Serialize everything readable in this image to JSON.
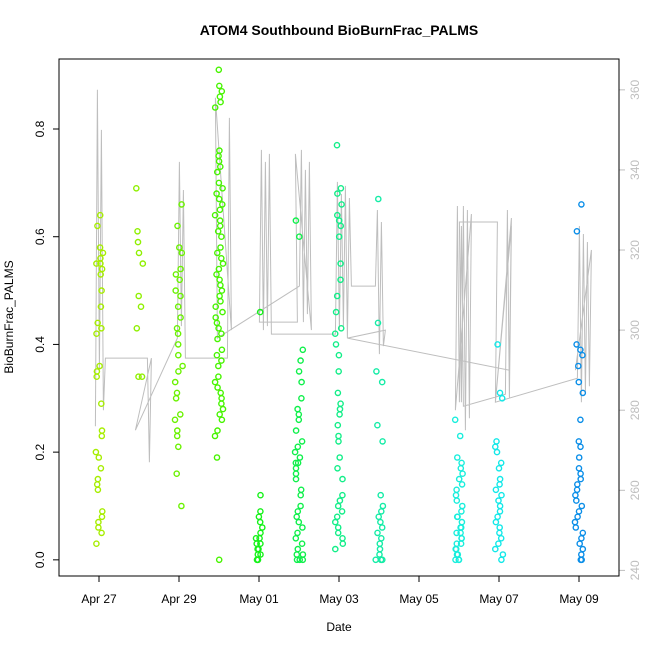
{
  "chart_data": {
    "type": "scatter",
    "title": "ATOM4 Southbound BioBurnFrac_PALMS",
    "xlabel": "Date",
    "ylabel": "BioBurnFrac_PALMS",
    "x_axis": {
      "type": "date",
      "range": [
        "2018-04-26",
        "2018-05-10"
      ],
      "ticks": [
        "2018-04-27",
        "2018-04-29",
        "2018-05-01",
        "2018-05-03",
        "2018-05-05",
        "2018-05-07",
        "2018-05-09"
      ],
      "tick_labels": [
        "Apr 27",
        "Apr 29",
        "May 01",
        "May 03",
        "May 05",
        "May 07",
        "May 09"
      ]
    },
    "y_axis": {
      "range": [
        -0.03,
        0.93
      ],
      "ticks": [
        0.0,
        0.2,
        0.4,
        0.6,
        0.8
      ],
      "tick_labels": [
        "0.0",
        "0.2",
        "0.4",
        "0.6",
        "0.8"
      ]
    },
    "y2_axis": {
      "side": "right",
      "color": "#bebebe",
      "range": [
        238.6,
        367.7
      ],
      "ticks": [
        240,
        260,
        280,
        300,
        320,
        340,
        360
      ],
      "tick_labels": [
        "240",
        "260",
        "280",
        "300",
        "320",
        "340",
        "360"
      ]
    },
    "grid": false,
    "legend": "none",
    "series": [
      {
        "kind": "points",
        "flights": [
          {
            "date": "2018-04-27",
            "color": "#a6ee00",
            "values": [
              0.64,
              0.62,
              0.58,
              0.57,
              0.56,
              0.55,
              0.55,
              0.54,
              0.53,
              0.5,
              0.47,
              0.44,
              0.43,
              0.42,
              0.36,
              0.35,
              0.34,
              0.29,
              0.24,
              0.23,
              0.2,
              0.19,
              0.17,
              0.15,
              0.14,
              0.13,
              0.09,
              0.08,
              0.07,
              0.06,
              0.05,
              0.03
            ]
          },
          {
            "date": "2018-04-28",
            "color": "#8ff000",
            "values": [
              0.69,
              0.61,
              0.59,
              0.57,
              0.55,
              0.49,
              0.47,
              0.43,
              0.34,
              0.34
            ]
          },
          {
            "date": "2018-04-29",
            "color": "#6af200",
            "values": [
              0.66,
              0.62,
              0.58,
              0.57,
              0.54,
              0.53,
              0.52,
              0.5,
              0.49,
              0.47,
              0.45,
              0.43,
              0.42,
              0.4,
              0.38,
              0.36,
              0.35,
              0.33,
              0.31,
              0.3,
              0.27,
              0.26,
              0.24,
              0.23,
              0.21,
              0.16,
              0.1
            ]
          },
          {
            "date": "2018-04-30",
            "color": "#47f400",
            "values": [
              0.91,
              0.88,
              0.87,
              0.86,
              0.85,
              0.84,
              0.76,
              0.75,
              0.74,
              0.73,
              0.72,
              0.7,
              0.69,
              0.68,
              0.67,
              0.66,
              0.65,
              0.64,
              0.63,
              0.62,
              0.61,
              0.6,
              0.58,
              0.57,
              0.56,
              0.55,
              0.54,
              0.53,
              0.52,
              0.51,
              0.5,
              0.49,
              0.48,
              0.47,
              0.46,
              0.45,
              0.44,
              0.43,
              0.42,
              0.41,
              0.39,
              0.38,
              0.37,
              0.36,
              0.34,
              0.33,
              0.32,
              0.31,
              0.3,
              0.29,
              0.28,
              0.27,
              0.26,
              0.24,
              0.23,
              0.19,
              0.0
            ]
          },
          {
            "date": "2018-05-01",
            "color": "#14f218",
            "values": [
              0.46,
              0.12,
              0.09,
              0.08,
              0.07,
              0.06,
              0.05,
              0.04,
              0.04,
              0.03,
              0.03,
              0.02,
              0.02,
              0.01,
              0.01,
              0.0,
              0.0,
              0.0
            ]
          },
          {
            "date": "2018-05-02",
            "color": "#0ef04a",
            "values": [
              0.63,
              0.6,
              0.39,
              0.37,
              0.35,
              0.33,
              0.3,
              0.28,
              0.27,
              0.26,
              0.24,
              0.22,
              0.21,
              0.2,
              0.19,
              0.18,
              0.18,
              0.17,
              0.16,
              0.15,
              0.13,
              0.12,
              0.1,
              0.09,
              0.08,
              0.07,
              0.06,
              0.05,
              0.04,
              0.03,
              0.02,
              0.01,
              0.01,
              0.0,
              0.0,
              0.0
            ]
          },
          {
            "date": "2018-05-03",
            "color": "#12ee88",
            "values": [
              0.77,
              0.69,
              0.68,
              0.66,
              0.64,
              0.63,
              0.62,
              0.6,
              0.55,
              0.52,
              0.49,
              0.46,
              0.43,
              0.42,
              0.4,
              0.38,
              0.35,
              0.31,
              0.29,
              0.28,
              0.27,
              0.25,
              0.23,
              0.22,
              0.19,
              0.17,
              0.15,
              0.12,
              0.11,
              0.1,
              0.09,
              0.08,
              0.07,
              0.06,
              0.05,
              0.04,
              0.03,
              0.02
            ]
          },
          {
            "date": "2018-05-04",
            "color": "#14eca6",
            "values": [
              0.67,
              0.44,
              0.35,
              0.33,
              0.25,
              0.22,
              0.12,
              0.1,
              0.09,
              0.08,
              0.07,
              0.06,
              0.05,
              0.04,
              0.03,
              0.02,
              0.01,
              0.0,
              0.0,
              0.0
            ]
          },
          {
            "date": "2018-05-06",
            "color": "#18eedc",
            "values": [
              0.26,
              0.23,
              0.19,
              0.18,
              0.17,
              0.16,
              0.15,
              0.14,
              0.13,
              0.12,
              0.11,
              0.1,
              0.09,
              0.08,
              0.08,
              0.07,
              0.06,
              0.06,
              0.05,
              0.05,
              0.04,
              0.04,
              0.03,
              0.03,
              0.02,
              0.02,
              0.01,
              0.01,
              0.0,
              0.0,
              0.0
            ]
          },
          {
            "date": "2018-05-07",
            "color": "#12e8e8",
            "values": [
              0.4,
              0.31,
              0.3,
              0.22,
              0.21,
              0.2,
              0.18,
              0.17,
              0.15,
              0.14,
              0.13,
              0.12,
              0.11,
              0.1,
              0.09,
              0.08,
              0.07,
              0.06,
              0.05,
              0.04,
              0.03,
              0.02,
              0.01,
              0.0
            ]
          },
          {
            "date": "2018-05-09",
            "color": "#0a8ee8",
            "values": [
              0.66,
              0.61,
              0.4,
              0.39,
              0.38,
              0.36,
              0.33,
              0.31,
              0.26,
              0.22,
              0.21,
              0.19,
              0.17,
              0.16,
              0.15,
              0.14,
              0.13,
              0.12,
              0.11,
              0.1,
              0.09,
              0.08,
              0.07,
              0.06,
              0.05,
              0.04,
              0.03,
              0.02,
              0.01,
              0.0,
              0.0
            ]
          }
        ]
      },
      {
        "kind": "line",
        "axis": "y2",
        "color": "#bebebe",
        "path": [
          [
            "2018-04-27",
            276
          ],
          [
            "2018-04-27",
            360
          ],
          [
            "2018-04-27",
            290
          ],
          [
            "2018-04-27",
            350
          ],
          [
            "2018-04-27",
            280
          ],
          [
            "2018-04-27",
            293
          ],
          [
            "2018-04-28",
            293
          ],
          [
            "2018-04-28",
            267
          ],
          [
            "2018-04-28",
            293
          ],
          [
            "2018-04-28",
            275
          ],
          [
            "2018-04-29",
            298
          ],
          [
            "2018-04-29",
            342
          ],
          [
            "2018-04-29",
            301
          ],
          [
            "2018-04-29",
            335
          ],
          [
            "2018-04-29",
            293
          ],
          [
            "2018-04-30",
            293
          ],
          [
            "2018-04-30",
            353
          ],
          [
            "2018-04-30",
            300
          ],
          [
            "2018-04-30",
            358
          ],
          [
            "2018-04-30",
            298
          ],
          [
            "2018-05-02",
            311
          ],
          [
            "2018-05-02",
            345
          ],
          [
            "2018-05-02",
            302
          ],
          [
            "2018-05-02",
            340
          ],
          [
            "2018-05-02",
            304
          ],
          [
            "2018-05-02",
            342
          ],
          [
            "2018-05-02",
            300
          ],
          [
            "2018-05-02",
            344
          ],
          [
            "2018-05-02",
            302
          ],
          [
            "2018-05-01",
            302
          ],
          [
            "2018-05-01",
            345
          ],
          [
            "2018-05-01",
            300
          ],
          [
            "2018-05-01",
            342
          ],
          [
            "2018-05-01",
            301
          ],
          [
            "2018-05-01",
            344
          ],
          [
            "2018-05-01",
            299
          ],
          [
            "2018-05-03",
            299
          ],
          [
            "2018-05-03",
            337
          ],
          [
            "2018-05-03",
            300
          ],
          [
            "2018-05-03",
            334
          ],
          [
            "2018-05-03",
            301
          ],
          [
            "2018-05-03",
            336
          ],
          [
            "2018-05-03",
            298
          ],
          [
            "2018-05-03",
            333
          ],
          [
            "2018-05-03",
            311
          ],
          [
            "2018-05-04",
            311
          ],
          [
            "2018-05-04",
            330
          ],
          [
            "2018-05-04",
            294
          ],
          [
            "2018-05-04",
            327
          ],
          [
            "2018-05-04",
            296
          ],
          [
            "2018-05-04",
            300
          ],
          [
            "2018-05-03",
            298
          ],
          [
            "2018-05-07",
            290
          ],
          [
            "2018-05-07",
            328
          ],
          [
            "2018-05-07",
            282
          ],
          [
            "2018-05-07",
            327
          ],
          [
            "2018-05-06",
            327
          ],
          [
            "2018-05-06",
            282
          ],
          [
            "2018-05-06",
            331
          ],
          [
            "2018-05-06",
            275
          ],
          [
            "2018-05-06",
            330
          ],
          [
            "2018-05-06",
            278
          ],
          [
            "2018-05-06",
            329
          ],
          [
            "2018-05-06",
            280
          ],
          [
            "2018-05-06",
            331
          ],
          [
            "2018-05-06",
            282
          ],
          [
            "2018-05-06",
            326
          ],
          [
            "2018-05-06",
            281
          ],
          [
            "2018-05-07",
            284
          ],
          [
            "2018-05-07",
            330
          ],
          [
            "2018-05-07",
            283
          ],
          [
            "2018-05-07",
            326
          ],
          [
            "2018-05-07",
            282
          ],
          [
            "2018-05-09",
            288
          ],
          [
            "2018-05-09",
            326
          ],
          [
            "2018-05-09",
            282
          ],
          [
            "2018-05-09",
            324
          ],
          [
            "2018-05-09",
            284
          ],
          [
            "2018-05-09",
            322
          ],
          [
            "2018-05-09",
            286
          ],
          [
            "2018-05-09",
            320
          ],
          [
            "2018-05-09",
            290
          ]
        ]
      }
    ]
  }
}
